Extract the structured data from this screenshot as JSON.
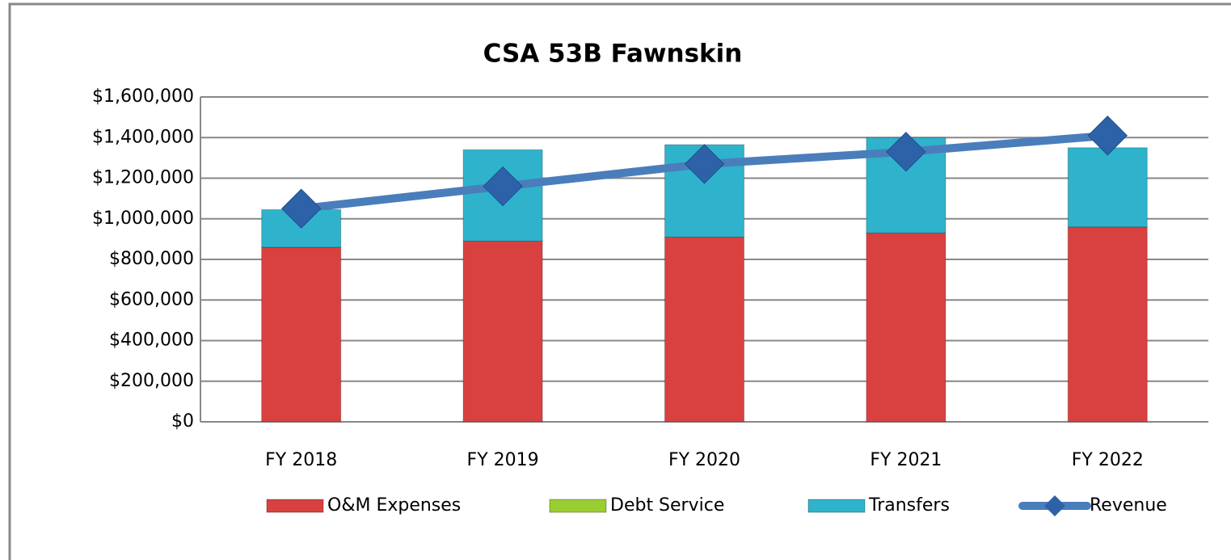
{
  "chart_data": {
    "type": "bar",
    "stacked": true,
    "title": "CSA 53B Fawnskin",
    "categories": [
      "FY 2018",
      "FY 2019",
      "FY 2020",
      "FY 2021",
      "FY 2022"
    ],
    "series": [
      {
        "name": "O&M Expenses",
        "color": "#d94140",
        "values": [
          860000,
          890000,
          910000,
          930000,
          960000
        ]
      },
      {
        "name": "Debt Service",
        "color": "#9acd32",
        "values": [
          0,
          0,
          0,
          0,
          0
        ]
      },
      {
        "name": "Transfers",
        "color": "#2fb3cc",
        "values": [
          185000,
          450000,
          455000,
          470000,
          390000
        ]
      },
      {
        "name": "Revenue",
        "type": "line",
        "color": "#4a7ebb",
        "values": [
          1050000,
          1160000,
          1270000,
          1330000,
          1410000
        ]
      }
    ],
    "ylim": [
      0,
      1600000
    ],
    "yticks": [
      {
        "value": 0,
        "label": "$0"
      },
      {
        "value": 200000,
        "label": "$200,000"
      },
      {
        "value": 400000,
        "label": "$400,000"
      },
      {
        "value": 600000,
        "label": "$600,000"
      },
      {
        "value": 800000,
        "label": "$800,000"
      },
      {
        "value": 1000000,
        "label": "$1,000,000"
      },
      {
        "value": 1200000,
        "label": "$1,200,000"
      },
      {
        "value": 1400000,
        "label": "$1,400,000"
      },
      {
        "value": 1600000,
        "label": "$1,600,000"
      }
    ],
    "grid": true,
    "legend": "bottom"
  }
}
